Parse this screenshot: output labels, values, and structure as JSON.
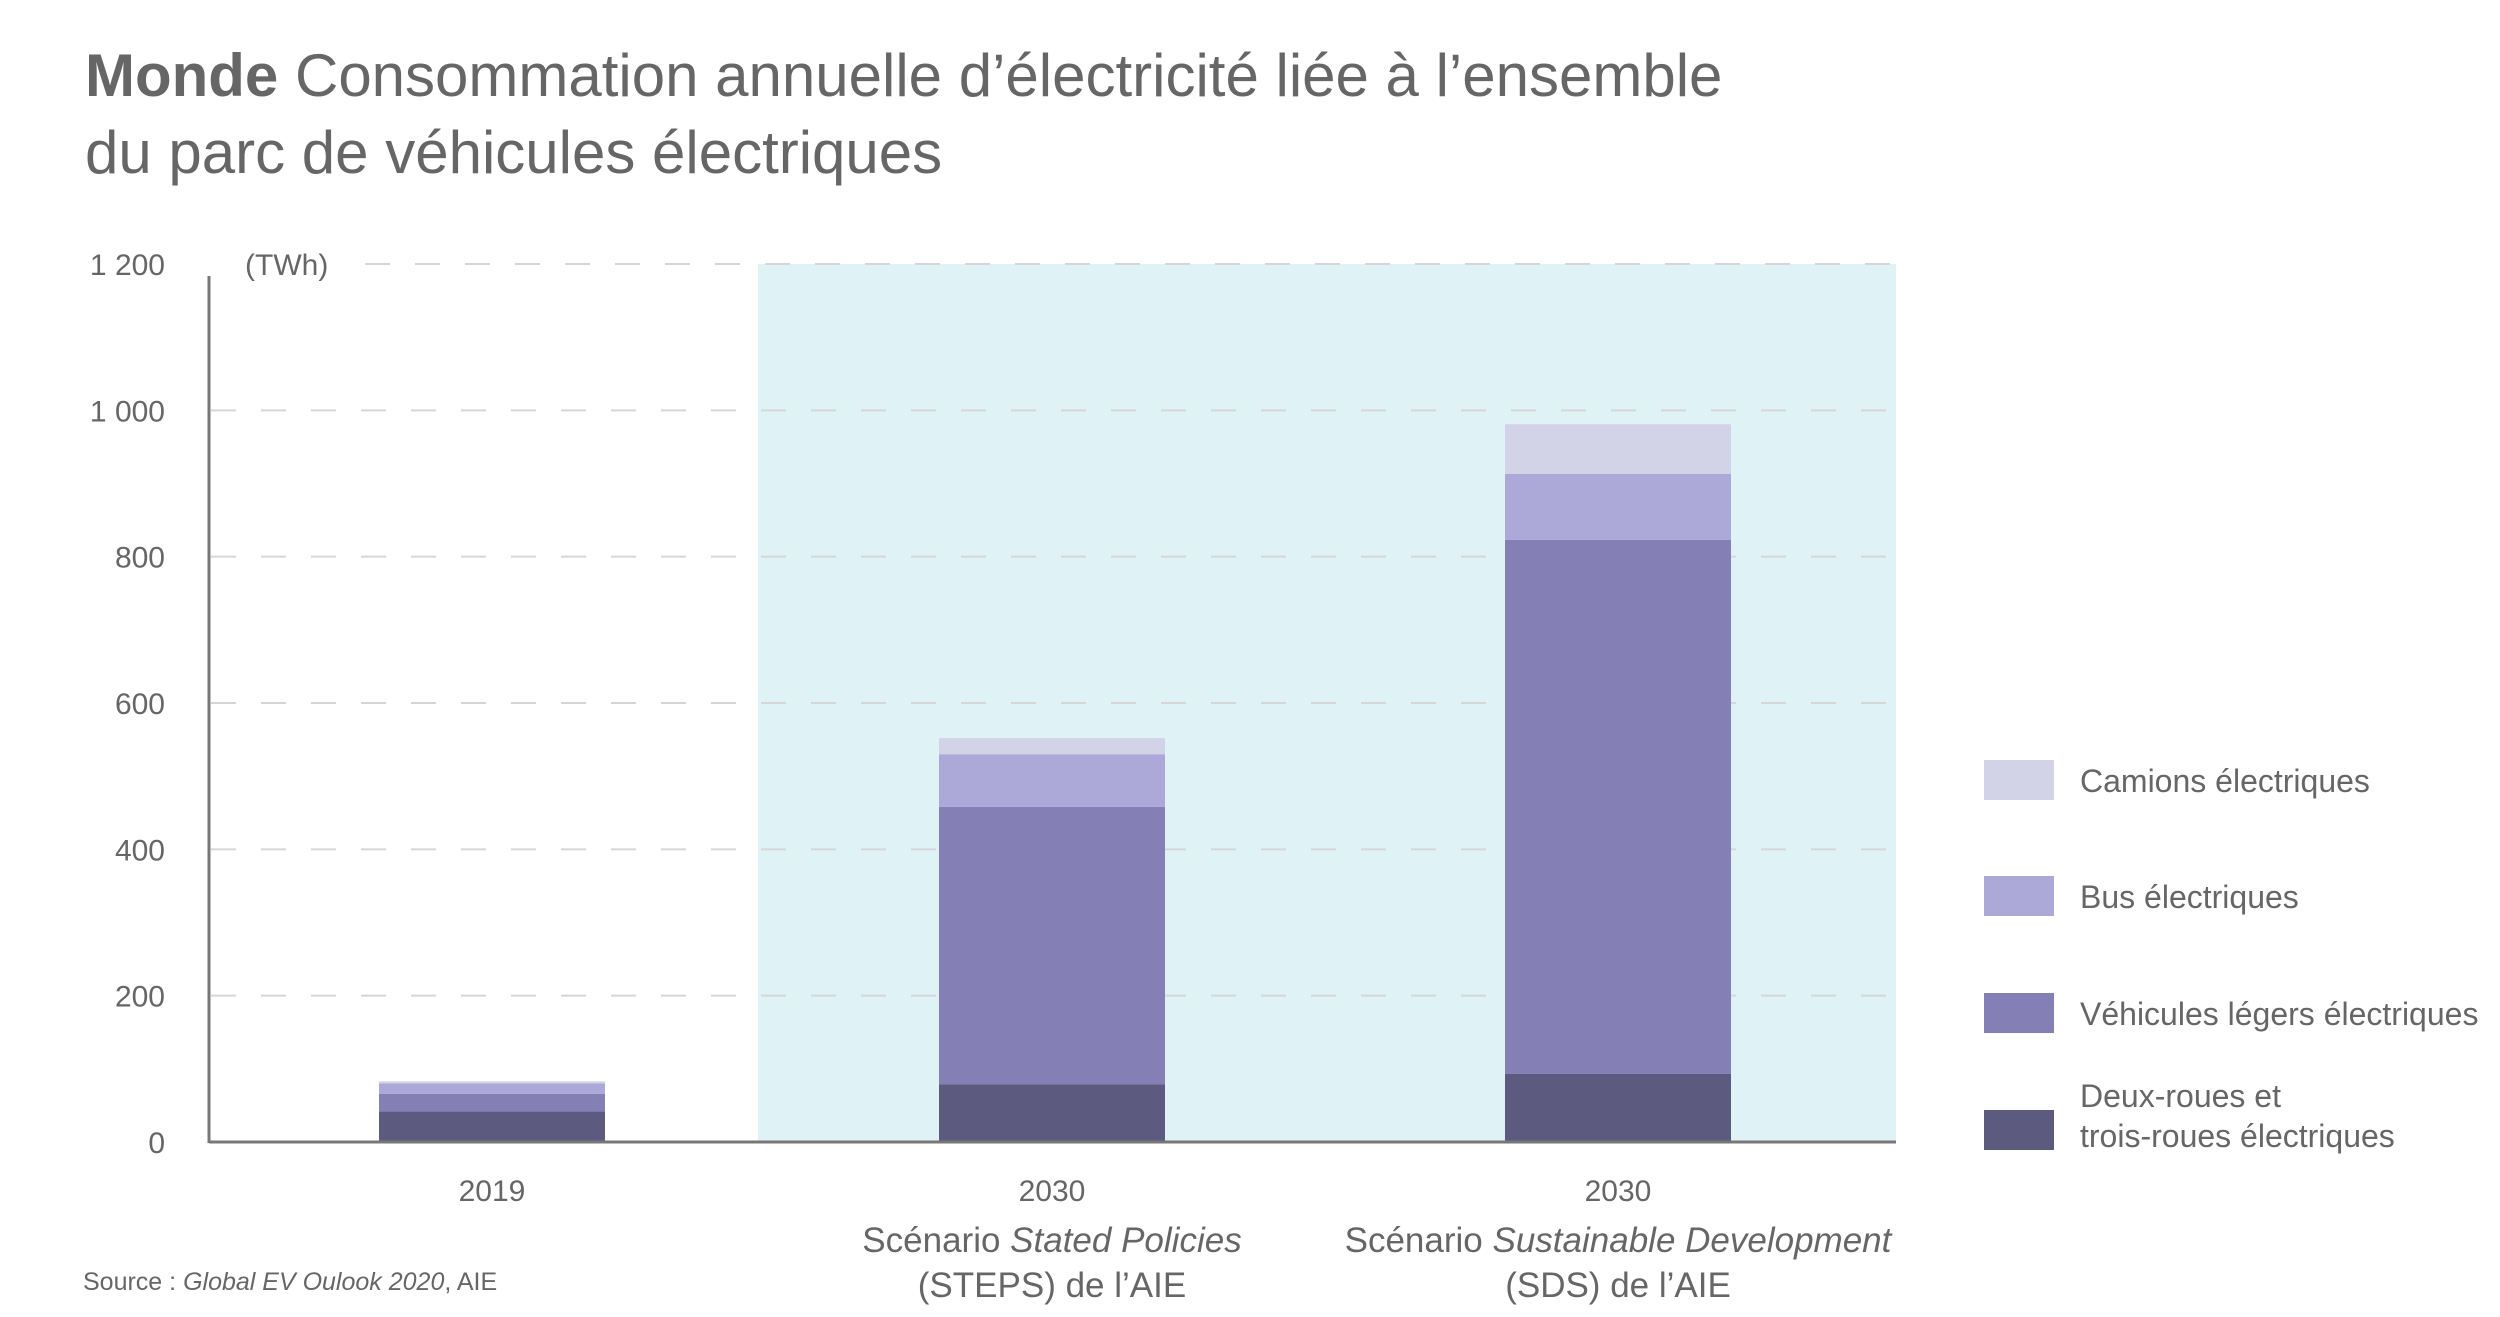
{
  "title": {
    "bold": "Monde",
    "line1_rest": " Consommation annuelle d’électricité liée à l’ensemble",
    "line2": "du parc de véhicules électriques"
  },
  "source": {
    "prefix": "Source : ",
    "italic": "Global EV Oulook 2020",
    "suffix": ", AIE"
  },
  "chart_data": {
    "type": "bar",
    "stacked": true,
    "title": "Monde Consommation annuelle d’électricité liée à l’ensemble du parc de véhicules électriques",
    "unit_label": "(TWh)",
    "ylabel": "TWh",
    "ylim": [
      0,
      1200
    ],
    "yticks": [
      0,
      200,
      400,
      600,
      800,
      1000,
      1200
    ],
    "ytick_labels": [
      "0",
      "200",
      "400",
      "600",
      "800",
      "1 000",
      "1 200"
    ],
    "grid": true,
    "legend_position": "right",
    "shaded_region": {
      "from_category": 1,
      "to_category": 2,
      "color": "#dff3f6"
    },
    "categories": [
      {
        "line1": "2019",
        "line2_plain": "",
        "line2_italic": "",
        "line3": ""
      },
      {
        "line1": "2030",
        "line2_plain": "Scénario ",
        "line2_italic": "Stated Policies",
        "line3": "(STEPS) de l’AIE"
      },
      {
        "line1": "2030",
        "line2_plain": "Scénario ",
        "line2_italic": "Sustainable Development",
        "line3": "(SDS) de l’AIE"
      }
    ],
    "series": [
      {
        "name": "Deux-roues et trois-roues électriques",
        "legend_line1": "Deux-roues et",
        "legend_line2": "trois-roues électriques",
        "color": "#5d5a80",
        "values": [
          42,
          79,
          93
        ]
      },
      {
        "name": "Véhicules légers électriques",
        "legend_line1": "Véhicules légers électriques",
        "legend_line2": "",
        "color": "#847fb5",
        "values": [
          24,
          379,
          730
        ]
      },
      {
        "name": "Bus électriques",
        "legend_line1": "Bus électriques",
        "legend_line2": "",
        "color": "#aca8d8",
        "values": [
          14,
          72,
          90
        ]
      },
      {
        "name": "Camions électriques",
        "legend_line1": "Camions électriques",
        "legend_line2": "",
        "color": "#d3d3e8",
        "values": [
          3,
          22,
          68
        ]
      }
    ]
  }
}
